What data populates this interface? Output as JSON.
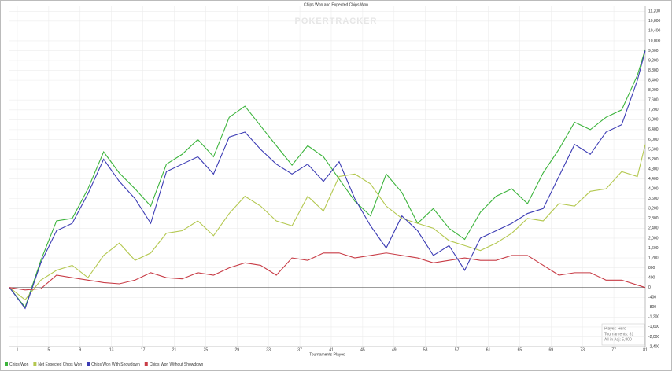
{
  "chart_data": {
    "type": "line",
    "title": "Chips Won and Expected Chips Won",
    "watermark": "POKERTRACKER",
    "x_label": "Tournaments Played",
    "info": [
      "Player: Hero",
      "Tournaments: 81",
      "All-in Adj: 5,800"
    ],
    "x": [
      0,
      2,
      4,
      6,
      8,
      10,
      12,
      14,
      16,
      18,
      20,
      22,
      24,
      26,
      28,
      30,
      32,
      34,
      36,
      38,
      40,
      42,
      44,
      46,
      48,
      50,
      52,
      54,
      56,
      58,
      60,
      62,
      64,
      66,
      68,
      70,
      72,
      74,
      76,
      78,
      80,
      81
    ],
    "xlim": [
      0,
      81
    ],
    "xticks": [
      1,
      5,
      9,
      13,
      17,
      21,
      25,
      29,
      33,
      37,
      41,
      45,
      49,
      53,
      57,
      61,
      65,
      69,
      73,
      77,
      81
    ],
    "ylim": [
      -2400,
      11400
    ],
    "yticks": [
      {
        "value": -2400,
        "label": "-2,400"
      },
      {
        "value": -2000,
        "label": "-2,000"
      },
      {
        "value": -1600,
        "label": "-1,600"
      },
      {
        "value": -1200,
        "label": "-1,200"
      },
      -800,
      -400,
      0,
      400,
      800,
      {
        "value": 1200,
        "label": "1,200"
      },
      {
        "value": 1600,
        "label": "1,600"
      },
      {
        "value": 2000,
        "label": "2,000"
      },
      {
        "value": 2400,
        "label": "2,400"
      },
      {
        "value": 2800,
        "label": "2,800"
      },
      {
        "value": 3200,
        "label": "3,200"
      },
      {
        "value": 3600,
        "label": "3,600"
      },
      {
        "value": 4000,
        "label": "4,000"
      },
      {
        "value": 4400,
        "label": "4,400"
      },
      {
        "value": 4800,
        "label": "4,800"
      },
      {
        "value": 5200,
        "label": "5,200"
      },
      {
        "value": 5600,
        "label": "5,600"
      },
      {
        "value": 6000,
        "label": "6,000"
      },
      {
        "value": 6400,
        "label": "6,400"
      },
      {
        "value": 6800,
        "label": "6,800"
      },
      {
        "value": 7200,
        "label": "7,200"
      },
      {
        "value": 7600,
        "label": "7,600"
      },
      {
        "value": 8000,
        "label": "8,000"
      },
      {
        "value": 8400,
        "label": "8,400"
      },
      {
        "value": 8800,
        "label": "8,800"
      },
      {
        "value": 9200,
        "label": "9,200"
      },
      {
        "value": 9600,
        "label": "9,600"
      },
      {
        "value": 10000,
        "label": "10,000"
      },
      {
        "value": 10400,
        "label": "10,400"
      },
      {
        "value": 10800,
        "label": "10,800"
      },
      {
        "value": 11200,
        "label": "11,200"
      }
    ],
    "grid": true,
    "series": [
      {
        "name": "Chips Won",
        "color": "#3cb43c",
        "values": [
          0,
          -800,
          1100,
          2700,
          2800,
          4000,
          5500,
          4640,
          4000,
          3300,
          5000,
          5400,
          6000,
          5300,
          6900,
          7350,
          6550,
          5750,
          4960,
          5750,
          5300,
          4400,
          3500,
          2900,
          4600,
          3850,
          2600,
          3200,
          2400,
          1950,
          3050,
          3700,
          4000,
          3400,
          4650,
          5600,
          6700,
          6400,
          6900,
          7200,
          8600,
          9650
        ]
      },
      {
        "name": "Net Expected Chips Won",
        "color": "#b4c850",
        "values": [
          0,
          -500,
          300,
          700,
          900,
          400,
          1300,
          1800,
          1100,
          1400,
          2200,
          2300,
          2700,
          2100,
          3000,
          3700,
          3300,
          2700,
          2500,
          3700,
          3100,
          4500,
          4600,
          4200,
          3300,
          2800,
          2600,
          2400,
          1900,
          1700,
          1500,
          1800,
          2200,
          2800,
          2700,
          3400,
          3300,
          3900,
          4000,
          4700,
          4500,
          5800
        ]
      },
      {
        "name": "Chips Won With Showdown",
        "color": "#3c3cb4",
        "values": [
          0,
          -850,
          1000,
          2300,
          2600,
          3800,
          5200,
          4300,
          3600,
          2600,
          4700,
          5000,
          5300,
          4600,
          6100,
          6300,
          5600,
          5000,
          4600,
          5000,
          4300,
          5100,
          3600,
          2500,
          1600,
          2900,
          2300,
          1300,
          1700,
          700,
          2000,
          2300,
          2600,
          3000,
          3200,
          4500,
          5800,
          5400,
          6300,
          6600,
          8400,
          9600
        ]
      },
      {
        "name": "Chips Won Without Showdown",
        "color": "#c83c46",
        "values": [
          0,
          -100,
          -50,
          500,
          400,
          300,
          200,
          150,
          300,
          600,
          400,
          350,
          600,
          500,
          800,
          1000,
          900,
          500,
          1200,
          1100,
          1400,
          1400,
          1200,
          1300,
          1400,
          1300,
          1200,
          1000,
          1100,
          1200,
          1100,
          1100,
          1300,
          1300,
          900,
          500,
          600,
          600,
          300,
          300,
          100,
          0
        ]
      }
    ]
  }
}
